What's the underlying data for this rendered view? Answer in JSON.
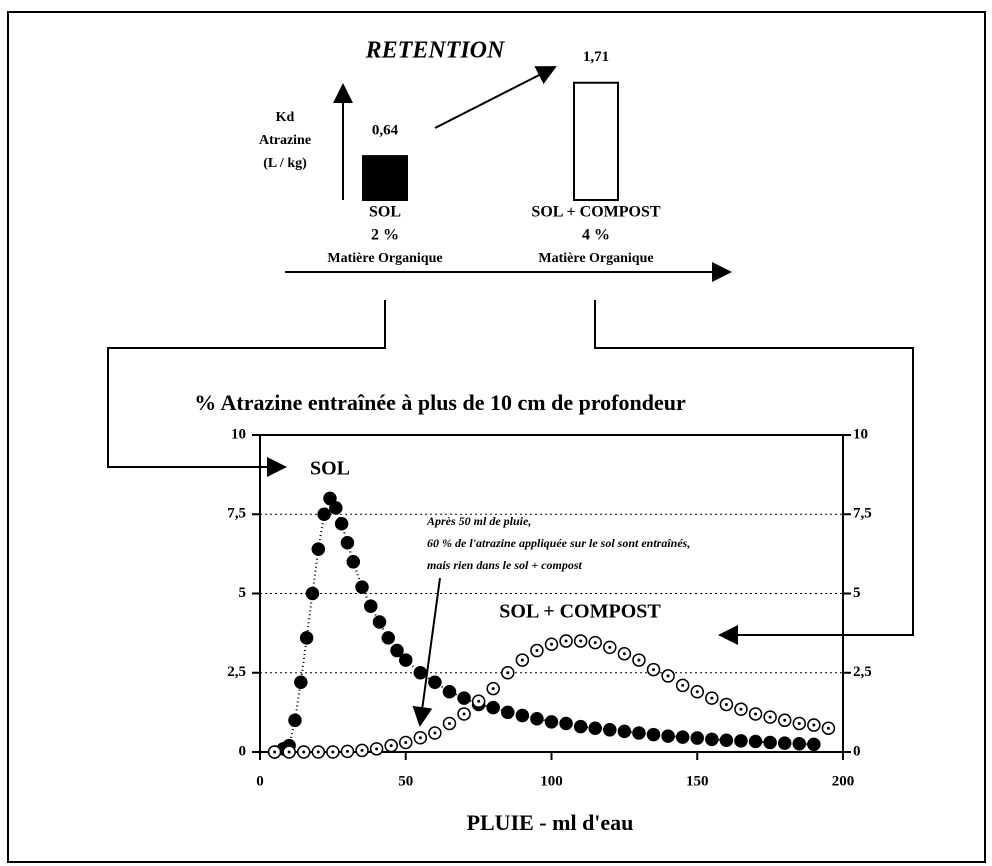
{
  "chart_data": [
    {
      "type": "bar",
      "title": "RETENTION",
      "y_label": [
        "Kd",
        "Atrazine",
        "(L / kg)"
      ],
      "categories": [
        [
          "SOL",
          "2 %",
          "Matière Organique"
        ],
        [
          "SOL + COMPOST",
          "4 %",
          "Matière Organique"
        ]
      ],
      "values": [
        0.64,
        1.71
      ],
      "value_labels": [
        "0,64",
        "1,71"
      ],
      "colors": [
        "#000000",
        "#ffffff"
      ],
      "ylim": [
        0,
        1.75
      ]
    },
    {
      "type": "scatter",
      "title": "% Atrazine entraînée à plus de 10 cm de profondeur",
      "x_label": "PLUIE - ml d'eau",
      "annotation": [
        "Après 50 ml de pluie,",
        "60 % de l'atrazine appliquée sur le sol sont entraînés,",
        "mais rien dans le sol + compost"
      ],
      "xlim": [
        0,
        200
      ],
      "xticks": [
        0,
        50,
        100,
        150,
        200
      ],
      "ylim": [
        0,
        10
      ],
      "yticks": [
        0,
        {
          "value": 2.5,
          "label": "2,5"
        },
        5,
        {
          "value": 7.5,
          "label": "7,5"
        },
        10
      ],
      "y2lim": [
        0,
        10
      ],
      "y2ticks": [
        0,
        {
          "value": 2.5,
          "label": "2,5"
        },
        5,
        {
          "value": 7.5,
          "label": "7,5"
        },
        10
      ],
      "grid": true,
      "series": [
        {
          "name": "SOL",
          "color": "#000000",
          "x": [
            5,
            8,
            10,
            12,
            14,
            16,
            18,
            20,
            22,
            24,
            26,
            28,
            30,
            32,
            35,
            38,
            41,
            44,
            47,
            50,
            55,
            60,
            65,
            70,
            75,
            80,
            85,
            90,
            95,
            100,
            105,
            110,
            115,
            120,
            125,
            130,
            135,
            140,
            145,
            150,
            155,
            160,
            165,
            170,
            175,
            180,
            185,
            190
          ],
          "values": [
            0,
            0.1,
            0.2,
            1.0,
            2.2,
            3.6,
            5.0,
            6.4,
            7.5,
            8.0,
            7.7,
            7.2,
            6.6,
            6.0,
            5.2,
            4.6,
            4.1,
            3.6,
            3.2,
            2.9,
            2.5,
            2.2,
            1.9,
            1.7,
            1.5,
            1.4,
            1.25,
            1.15,
            1.05,
            0.95,
            0.9,
            0.8,
            0.75,
            0.7,
            0.65,
            0.6,
            0.55,
            0.5,
            0.47,
            0.44,
            0.4,
            0.37,
            0.35,
            0.33,
            0.3,
            0.28,
            0.26,
            0.24
          ]
        },
        {
          "name": "SOL + COMPOST",
          "color": "#ffffff",
          "x": [
            5,
            10,
            15,
            20,
            25,
            30,
            35,
            40,
            45,
            50,
            55,
            60,
            65,
            70,
            75,
            80,
            85,
            90,
            95,
            100,
            105,
            110,
            115,
            120,
            125,
            130,
            135,
            140,
            145,
            150,
            155,
            160,
            165,
            170,
            175,
            180,
            185,
            190,
            195
          ],
          "values": [
            0,
            0,
            0,
            0,
            0,
            0.02,
            0.05,
            0.1,
            0.2,
            0.3,
            0.45,
            0.6,
            0.9,
            1.2,
            1.6,
            2.0,
            2.5,
            2.9,
            3.2,
            3.4,
            3.5,
            3.5,
            3.45,
            3.3,
            3.1,
            2.9,
            2.6,
            2.4,
            2.1,
            1.9,
            1.7,
            1.5,
            1.35,
            1.2,
            1.1,
            1.0,
            0.9,
            0.85,
            0.75
          ]
        }
      ]
    }
  ]
}
